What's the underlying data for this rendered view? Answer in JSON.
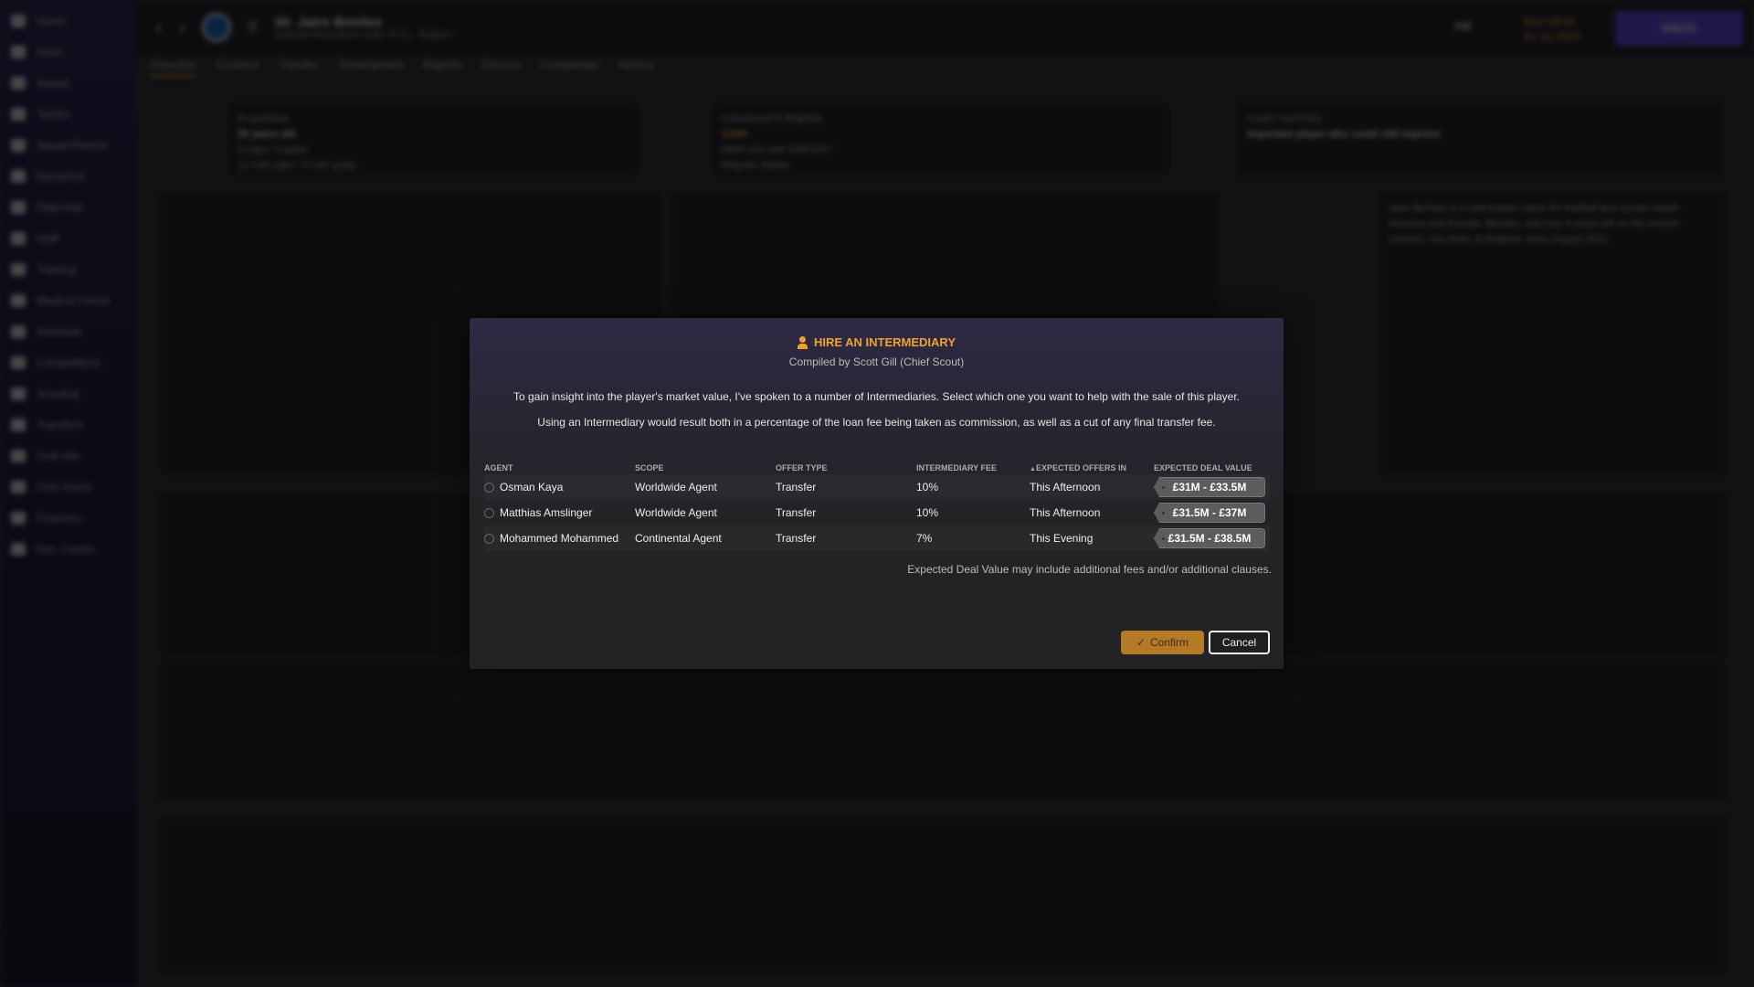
{
  "sidebar": {
    "items": [
      "Home",
      "Inbox",
      "Squad",
      "Tactics",
      "Squad Planner",
      "Dynamics",
      "Data Hub",
      "Staff",
      "Training",
      "Medical Centre",
      "Schedule",
      "Competitions",
      "Scouting",
      "Transfers",
      "Club Info",
      "Club Vision",
      "Finances",
      "Dev. Centre"
    ]
  },
  "header": {
    "player_title": "30. Jairo Benítez",
    "player_subtitle": "Defender/Wing Back (Left) / M (L) - Brighton",
    "fm_label": "FM",
    "time": "Mon 09:00",
    "date": "31 Jul 2023",
    "inbox": "INBOX"
  },
  "tabs": [
    "Overview",
    "Contract",
    "Transfer",
    "Development",
    "Reports",
    "Discuss",
    "Comparison",
    "History"
  ],
  "profile": {
    "nationality": "Ecuadorian",
    "age": "25 years old",
    "caps": "0 caps / 0 goals",
    "u20": "12 U20 caps / 4 U20 goals",
    "contract_label": "Contracted to Brighton",
    "value": "£38M",
    "wage": "£80K p/w until 30/6/2027",
    "status": "Regular Starter",
    "coach_label": "Coach Summary",
    "coach_text": "Important player who could still improve",
    "biography": "Jairo Benítez is a well-known name for football fans across South America and Europe. Benítez, who has 4 years left on his current contract, has been at Brighton since August 2022."
  },
  "modal": {
    "title": "HIRE AN INTERMEDIARY",
    "subtitle": "Compiled by Scott Gill (Chief Scout)",
    "paragraph1": "To gain insight into the player's market value, I've spoken to a number of Intermediaries. Select which one you want to help with the sale of this player.",
    "paragraph2": "Using an Intermediary would result both in a percentage of the loan fee being taken as commission, as well as a cut of any final transfer fee.",
    "columns": [
      "AGENT",
      "SCOPE",
      "OFFER TYPE",
      "INTERMEDIARY FEE",
      "EXPECTED OFFERS IN",
      "EXPECTED DEAL VALUE"
    ],
    "sorted_column": "EXPECTED OFFERS IN",
    "rows": [
      {
        "agent": "Osman Kaya",
        "scope": "Worldwide Agent",
        "offer_type": "Transfer",
        "fee": "10%",
        "offers_in": "This Afternoon",
        "deal_value": "£31M - £33.5M"
      },
      {
        "agent": "Matthias Amslinger",
        "scope": "Worldwide Agent",
        "offer_type": "Transfer",
        "fee": "10%",
        "offers_in": "This Afternoon",
        "deal_value": "£31.5M - £37M"
      },
      {
        "agent": "Mohammed Mohammed",
        "scope": "Continental Agent",
        "offer_type": "Transfer",
        "fee": "7%",
        "offers_in": "This Evening",
        "deal_value": "£31.5M - £38.5M"
      }
    ],
    "note": "Expected Deal Value may include additional fees and/or additional clauses.",
    "confirm": "Confirm",
    "cancel": "Cancel",
    "accent": "#f0a12a"
  }
}
